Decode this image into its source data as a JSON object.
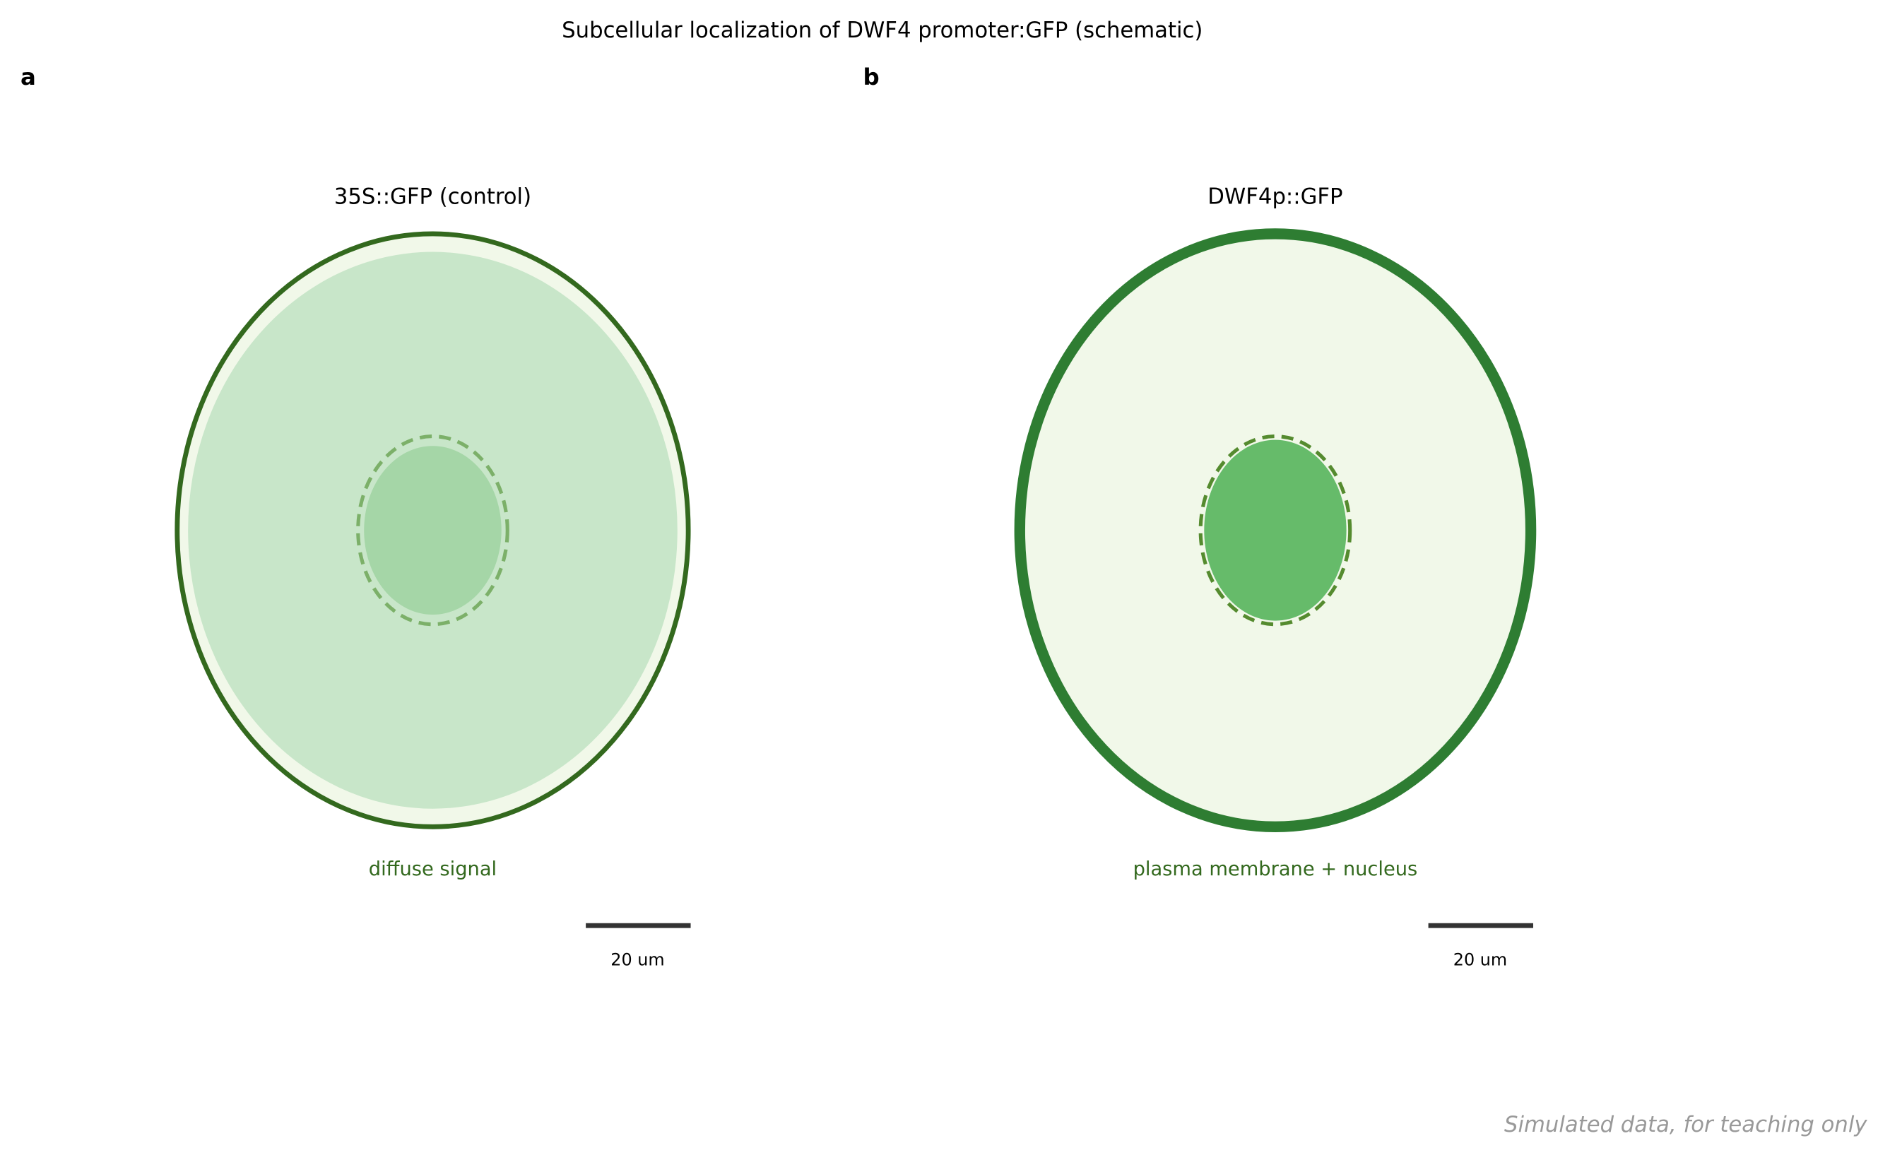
{
  "header": {
    "title": "Subcellular localization of DWF4 promoter:GFP (schematic)"
  },
  "panels": [
    {
      "label": "a",
      "title": "35S::GFP (control)",
      "caption": "diffuse signal",
      "scale_bar": "20 um"
    },
    {
      "label": "b",
      "title": "DWF4p::GFP",
      "caption": "plasma membrane + nucleus",
      "scale_bar": "20 um"
    }
  ],
  "footer": {
    "note": "Simulated data, for teaching only"
  }
}
